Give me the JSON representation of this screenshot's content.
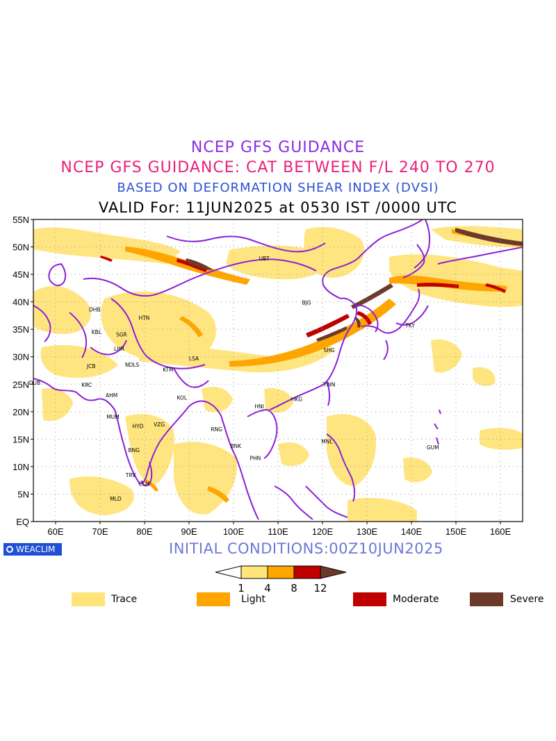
{
  "titles": {
    "line1": "NCEP GFS GUIDANCE",
    "line2": "NCEP GFS GUIDANCE: CAT BETWEEN F/L 240 TO 270",
    "line3": "BASED ON DEFORMATION SHEAR INDEX (DVSI)",
    "line4": "VALID For: 11JUN2025 at 0530 IST /0000 UTC"
  },
  "colors": {
    "trace": "#ffe47a",
    "light": "#ffa500",
    "moderate": "#c00000",
    "severe": "#6b3a2a",
    "coast": "#8b1fd6",
    "title1": "#8a2be2",
    "title2": "#e8207a",
    "title3": "#2a4fd6"
  },
  "axes": {
    "lat_labels": [
      "55N",
      "50N",
      "45N",
      "40N",
      "35N",
      "30N",
      "25N",
      "20N",
      "15N",
      "10N",
      "5N",
      "EQ"
    ],
    "lon_labels": [
      "60E",
      "70E",
      "80E",
      "90E",
      "100E",
      "110E",
      "120E",
      "130E",
      "140E",
      "150E",
      "160E"
    ]
  },
  "stations": [
    {
      "code": "UBT",
      "lon": 106.9,
      "lat": 47.9
    },
    {
      "code": "BJG",
      "lon": 116.4,
      "lat": 39.9
    },
    {
      "code": "TKY",
      "lon": 139.7,
      "lat": 35.7
    },
    {
      "code": "SHG",
      "lon": 121.5,
      "lat": 31.2
    },
    {
      "code": "TWN",
      "lon": 121.5,
      "lat": 25.0
    },
    {
      "code": "HKG",
      "lon": 114.2,
      "lat": 22.3
    },
    {
      "code": "HNI",
      "lon": 105.8,
      "lat": 21.0
    },
    {
      "code": "LSA",
      "lon": 91.1,
      "lat": 29.7
    },
    {
      "code": "KTM",
      "lon": 85.3,
      "lat": 27.7
    },
    {
      "code": "HTN",
      "lon": 79.9,
      "lat": 37.1
    },
    {
      "code": "DHB",
      "lon": 68.8,
      "lat": 38.6
    },
    {
      "code": "KBL",
      "lon": 69.2,
      "lat": 34.5
    },
    {
      "code": "SGR",
      "lon": 74.8,
      "lat": 34.1
    },
    {
      "code": "LHR",
      "lon": 74.3,
      "lat": 31.5
    },
    {
      "code": "JCB",
      "lon": 68.0,
      "lat": 28.3
    },
    {
      "code": "NDLS",
      "lon": 77.2,
      "lat": 28.6
    },
    {
      "code": "DUB",
      "lon": 55.3,
      "lat": 25.3
    },
    {
      "code": "KRC",
      "lon": 67.0,
      "lat": 24.9
    },
    {
      "code": "AHM",
      "lon": 72.6,
      "lat": 23.0
    },
    {
      "code": "KOL",
      "lon": 88.4,
      "lat": 22.6
    },
    {
      "code": "MUM",
      "lon": 72.9,
      "lat": 19.1
    },
    {
      "code": "HYD",
      "lon": 78.5,
      "lat": 17.4
    },
    {
      "code": "VZG",
      "lon": 83.3,
      "lat": 17.7
    },
    {
      "code": "RNG",
      "lon": 96.2,
      "lat": 16.8
    },
    {
      "code": "BNK",
      "lon": 100.5,
      "lat": 13.8
    },
    {
      "code": "PHN",
      "lon": 104.9,
      "lat": 11.6
    },
    {
      "code": "MNL",
      "lon": 121.0,
      "lat": 14.6
    },
    {
      "code": "GUM",
      "lon": 144.8,
      "lat": 13.5
    },
    {
      "code": "BNG",
      "lon": 77.6,
      "lat": 13.0
    },
    {
      "code": "TRV",
      "lon": 76.9,
      "lat": 8.5
    },
    {
      "code": "CLM",
      "lon": 79.9,
      "lat": 6.9
    },
    {
      "code": "MLD",
      "lon": 73.5,
      "lat": 4.2
    }
  ],
  "footer": {
    "logo": "WEACLIM",
    "initial": "INITIAL CONDITIONS:00Z10JUN2025"
  },
  "colorbar": {
    "ticks": [
      "1",
      "4",
      "8",
      "12"
    ]
  },
  "legend": [
    {
      "label": "Trace",
      "color": "#ffe47a"
    },
    {
      "label": "Light",
      "color": "#ffa500"
    },
    {
      "label": "Moderate",
      "color": "#c00000"
    },
    {
      "label": "Severe",
      "color": "#6b3a2a"
    }
  ]
}
